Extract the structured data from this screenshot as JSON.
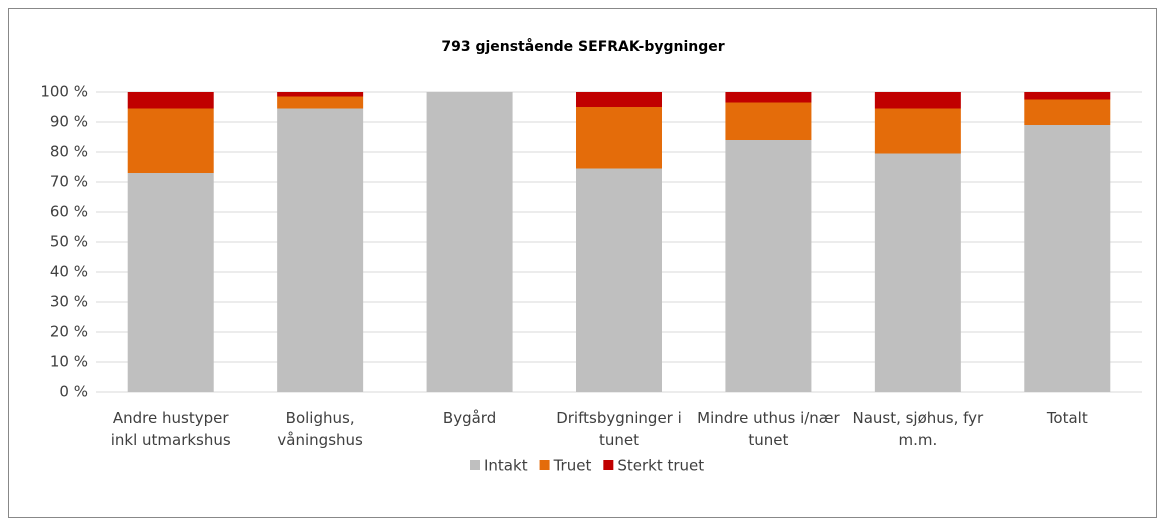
{
  "chart_data": {
    "type": "stacked_bar",
    "title": "793 gjenstående SEFRAK-bygninger",
    "categories": [
      "Andre hustyper inkl utmarkshus",
      "Bolighus, våningshus",
      "Bygård",
      "Driftsbygninger i tunet",
      "Mindre uthus i/nær tunet",
      "Naust, sjøhus, fyr m.m.",
      "Totalt"
    ],
    "series": [
      {
        "name": "Intakt",
        "color": "#bfbfbf",
        "values": [
          73,
          94.5,
          100,
          74.5,
          84,
          79.5,
          89
        ]
      },
      {
        "name": "Truet",
        "color": "#e46c0a",
        "values": [
          21.5,
          4,
          0,
          20.5,
          12.5,
          15,
          8.5
        ]
      },
      {
        "name": "Sterkt truet",
        "color": "#c00000",
        "values": [
          5.5,
          1.5,
          0,
          5,
          3.5,
          5.5,
          2.5
        ]
      }
    ],
    "ylim": [
      0,
      100
    ],
    "yticks": [
      {
        "value": 0,
        "label": "0 %"
      },
      {
        "value": 10,
        "label": "10 %"
      },
      {
        "value": 20,
        "label": "20 %"
      },
      {
        "value": 30,
        "label": "30 %"
      },
      {
        "value": 40,
        "label": "40 %"
      },
      {
        "value": 50,
        "label": "50 %"
      },
      {
        "value": 60,
        "label": "60 %"
      },
      {
        "value": 70,
        "label": "70 %"
      },
      {
        "value": 80,
        "label": "80 %"
      },
      {
        "value": 90,
        "label": "90 %"
      },
      {
        "value": 100,
        "label": "100 %"
      }
    ],
    "grid": true,
    "legend": "bottom"
  }
}
